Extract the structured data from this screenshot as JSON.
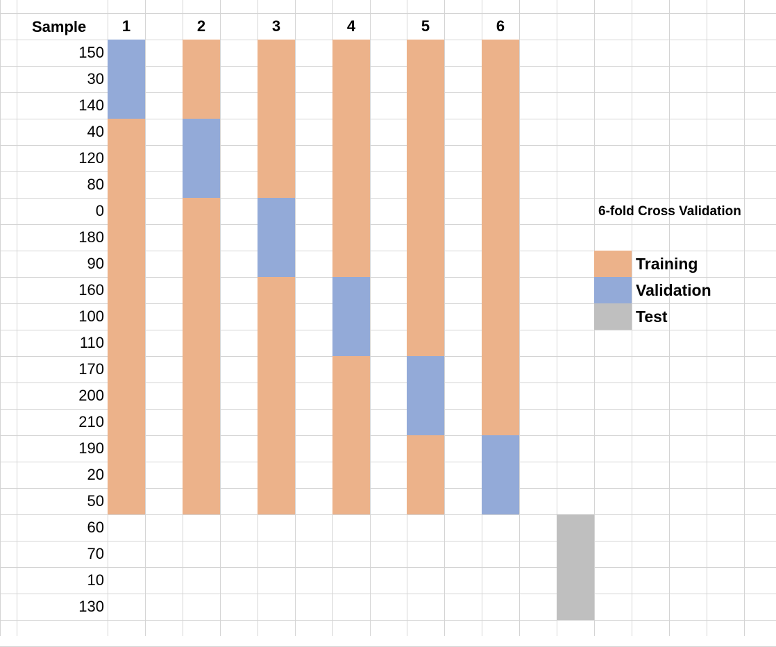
{
  "header": {
    "sample_label": "Sample",
    "folds": [
      "1",
      "2",
      "3",
      "4",
      "5",
      "6"
    ]
  },
  "samples": [
    "150",
    "30",
    "140",
    "40",
    "120",
    "80",
    "0",
    "180",
    "90",
    "160",
    "100",
    "110",
    "170",
    "200",
    "210",
    "190",
    "20",
    "50",
    "60",
    "70",
    "10",
    "130"
  ],
  "fold_validation_rows": [
    [
      0,
      3
    ],
    [
      3,
      6
    ],
    [
      6,
      9
    ],
    [
      9,
      12
    ],
    [
      12,
      15
    ],
    [
      15,
      18
    ]
  ],
  "training_rows": [
    0,
    18
  ],
  "test_rows": [
    18,
    22
  ],
  "legend": {
    "title": "6-fold Cross Validation",
    "items": [
      {
        "label": "Training",
        "color": "#ecb28a"
      },
      {
        "label": "Validation",
        "color": "#93aad8"
      },
      {
        "label": "Test",
        "color": "#bfbfbf"
      }
    ]
  },
  "colors": {
    "training": "#ecb28a",
    "validation": "#93aad8",
    "test": "#bfbfbf",
    "grid": "#d4d4d4"
  }
}
